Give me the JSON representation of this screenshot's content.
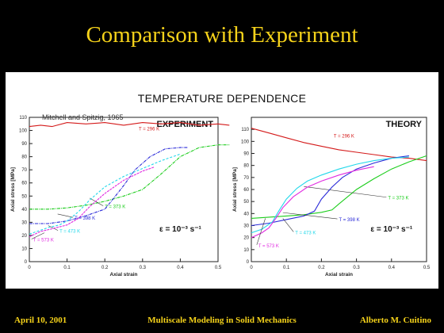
{
  "slide_title": "Comparison with Experiment",
  "panel_title": "TEMPERATURE DEPENDENCE",
  "footer": {
    "date": "April 10, 2001",
    "course": "Multiscale Modeling in Solid Mechanics",
    "author": "Alberto M. Cuitino"
  },
  "colors": {
    "title_text": "#f5d21a",
    "background": "#000000",
    "panel": "#ffffff",
    "T296": "#d41a1a",
    "T373": "#1ccd1c",
    "T398": "#2a2ad8",
    "T473": "#22d8ea",
    "T573": "#e02be0"
  },
  "chart_data": [
    {
      "type": "line",
      "title": "EXPERIMENT",
      "annotation": "Mitchell and Spitzig, 1965",
      "strain_rate": "ε = 10⁻³ s⁻¹",
      "xlabel": "Axial strain",
      "ylabel": "Axial stress [MPa]",
      "xlim": [
        0,
        0.5
      ],
      "ylim": [
        0,
        110
      ],
      "xticks": [
        "0",
        "0.1",
        "0.2",
        "0.3",
        "0.4",
        "0.5"
      ],
      "yticks": [
        "0",
        "10",
        "20",
        "30",
        "40",
        "50",
        "60",
        "70",
        "80",
        "90",
        "100",
        "110"
      ],
      "series": [
        {
          "name": "T = 296 K",
          "color_key": "T296",
          "x": [
            0,
            0.03,
            0.06,
            0.1,
            0.15,
            0.2,
            0.25,
            0.3,
            0.35,
            0.4,
            0.45,
            0.5,
            0.53
          ],
          "y": [
            103,
            104,
            103,
            106,
            105,
            106,
            104,
            106,
            105,
            106,
            104,
            105,
            104
          ]
        },
        {
          "name": "T = 373 K",
          "color_key": "T373",
          "x": [
            0,
            0.05,
            0.1,
            0.15,
            0.2,
            0.25,
            0.3,
            0.35,
            0.4,
            0.45,
            0.5,
            0.53
          ],
          "y": [
            40,
            40,
            41,
            43,
            46,
            50,
            55,
            67,
            80,
            87,
            89,
            89
          ]
        },
        {
          "name": "T = 398 K",
          "color_key": "T398",
          "x": [
            0,
            0.05,
            0.1,
            0.15,
            0.18,
            0.2,
            0.22,
            0.25,
            0.28,
            0.32,
            0.36,
            0.4,
            0.42
          ],
          "y": [
            29,
            29,
            31,
            35,
            38,
            40,
            47,
            58,
            70,
            80,
            86,
            87,
            87
          ]
        },
        {
          "name": "T = 473 K",
          "color_key": "T473",
          "x": [
            0,
            0.05,
            0.08,
            0.1,
            0.13,
            0.16,
            0.2,
            0.25,
            0.3,
            0.35,
            0.4
          ],
          "y": [
            21,
            26,
            28,
            31,
            38,
            47,
            57,
            65,
            71,
            77,
            82
          ]
        },
        {
          "name": "T = 573 K",
          "color_key": "T573",
          "x": [
            0,
            0.03,
            0.06,
            0.1,
            0.13,
            0.16,
            0.2,
            0.25,
            0.3,
            0.33
          ],
          "y": [
            19,
            23,
            25,
            28,
            33,
            42,
            52,
            62,
            69,
            72
          ]
        }
      ]
    },
    {
      "type": "line",
      "title": "THEORY",
      "strain_rate": "ε = 10⁻³ s⁻¹",
      "xlabel": "Axial strain",
      "ylabel": "Axial stress [MPa]",
      "xlim": [
        0,
        0.5
      ],
      "ylim": [
        0,
        120
      ],
      "xticks": [
        "0",
        "0.1",
        "0.2",
        "0.3",
        "0.4",
        "0.5"
      ],
      "yticks": [
        "0",
        "10",
        "20",
        "30",
        "40",
        "50",
        "60",
        "70",
        "80",
        "90",
        "100",
        "110"
      ],
      "series": [
        {
          "name": "T = 296 K",
          "color_key": "T296",
          "x": [
            0,
            0.05,
            0.1,
            0.15,
            0.2,
            0.25,
            0.3,
            0.35,
            0.4,
            0.45,
            0.5
          ],
          "y": [
            111,
            107,
            103,
            99,
            96,
            93,
            91,
            89,
            87,
            86,
            84
          ]
        },
        {
          "name": "T = 373 K",
          "color_key": "T373",
          "x": [
            0,
            0.05,
            0.1,
            0.15,
            0.2,
            0.23,
            0.25,
            0.3,
            0.35,
            0.4,
            0.45,
            0.5
          ],
          "y": [
            36,
            37,
            38,
            39,
            41,
            43,
            48,
            60,
            69,
            77,
            83,
            88
          ]
        },
        {
          "name": "T = 398 K",
          "color_key": "T398",
          "x": [
            0,
            0.05,
            0.1,
            0.15,
            0.18,
            0.2,
            0.23,
            0.26,
            0.3,
            0.35,
            0.4,
            0.45
          ],
          "y": [
            30,
            32,
            35,
            38,
            42,
            52,
            62,
            70,
            77,
            82,
            86,
            88
          ]
        },
        {
          "name": "T = 473 K",
          "color_key": "T473",
          "x": [
            0,
            0.03,
            0.06,
            0.08,
            0.1,
            0.13,
            0.16,
            0.2,
            0.25,
            0.3,
            0.35,
            0.4,
            0.45
          ],
          "y": [
            24,
            27,
            33,
            43,
            52,
            61,
            67,
            72,
            77,
            81,
            84,
            86,
            87
          ]
        },
        {
          "name": "T = 573 K",
          "color_key": "T573",
          "x": [
            0,
            0.03,
            0.05,
            0.07,
            0.09,
            0.12,
            0.16,
            0.2,
            0.25,
            0.3,
            0.35
          ],
          "y": [
            20,
            24,
            28,
            36,
            45,
            54,
            62,
            67,
            72,
            76,
            79
          ]
        }
      ]
    }
  ]
}
